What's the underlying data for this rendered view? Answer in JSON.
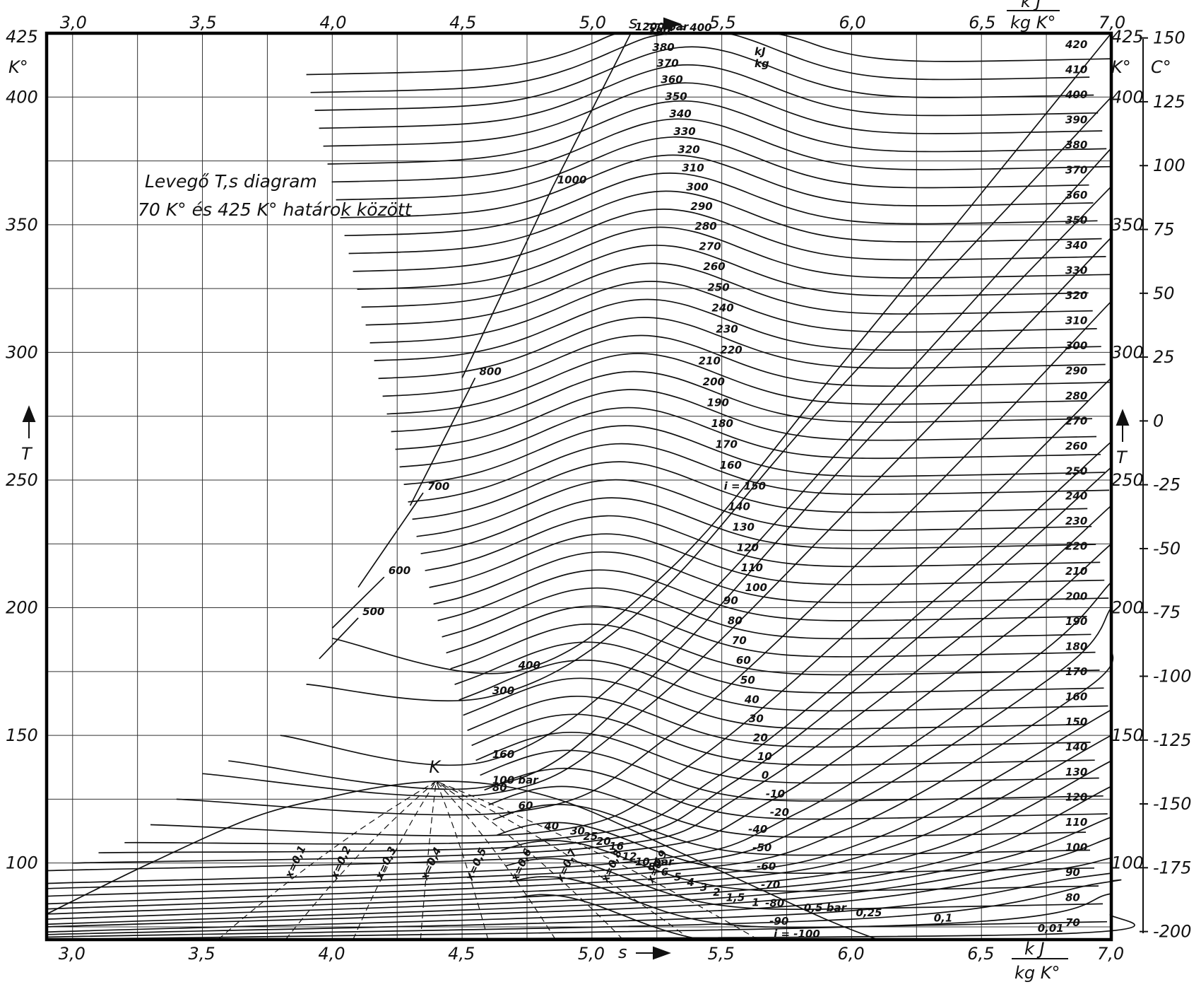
{
  "chart_data": {
    "type": "line",
    "title": "Levegő T,s diagram",
    "subtitle": "70 K° és 425 K° határok között",
    "xlabel": "s",
    "x_unit_num": "k J",
    "x_unit_den": "kg K°",
    "ylabel": "T",
    "y_unit": "K°",
    "y2_unit": "C°",
    "xlim": [
      2.9,
      7.0
    ],
    "ylim": [
      70,
      425
    ],
    "y2lim": [
      -200,
      150
    ],
    "grid": true,
    "x_ticks_bottom": [
      "3,0",
      "3,5",
      "4,0",
      "4,5",
      "5,0",
      "5,5",
      "6,0",
      "6,5",
      "7,0"
    ],
    "x_ticks_top": [
      "3,0",
      "3,5",
      "4,0",
      "4,5",
      "5,0",
      "5,5",
      "6,0",
      "6,5",
      "7,0"
    ],
    "y_ticks_left": [
      "425",
      "400",
      "350",
      "300",
      "250",
      "200",
      "150",
      "100"
    ],
    "y_ticks_right": [
      "425",
      "400",
      "350",
      "300",
      "250",
      "200",
      "150",
      "100"
    ],
    "y2_ticks": [
      "150",
      "125",
      "100",
      "75",
      "50",
      "25",
      "0",
      "-25",
      "-50",
      "-75",
      "-100",
      "-125",
      "-150",
      "-175",
      "-200"
    ],
    "critical_point": {
      "label": "K",
      "s": 4.4,
      "T": 132
    },
    "saturation_curve": {
      "s": [
        2.9,
        3.3,
        3.7,
        4.0,
        4.2,
        4.4,
        4.6,
        4.8,
        5.0,
        5.3,
        5.6,
        5.9,
        6.1
      ],
      "T": [
        80,
        100,
        118,
        126,
        130,
        132,
        131,
        127,
        120,
        106,
        92,
        78,
        70
      ]
    },
    "isobars": [
      {
        "label": "1200 bar",
        "s": [
          4.85,
          5.15
        ],
        "T": [
          365,
          425
        ]
      },
      {
        "label": "1000",
        "s": [
          4.5,
          4.85
        ],
        "T": [
          290,
          365
        ]
      },
      {
        "label": "800",
        "s": [
          4.3,
          4.55
        ],
        "T": [
          240,
          290
        ]
      },
      {
        "label": "700",
        "s": [
          4.1,
          4.35
        ],
        "T": [
          208,
          245
        ]
      },
      {
        "label": "600",
        "s": [
          4.0,
          4.2
        ],
        "T": [
          192,
          212
        ]
      },
      {
        "label": "500",
        "s": [
          3.95,
          4.1
        ],
        "T": [
          180,
          196
        ]
      },
      {
        "label": "400",
        "s": [
          4.0,
          4.7,
          5.3,
          6.0,
          7.0
        ],
        "T": [
          188,
          175,
          215,
          300,
          425
        ]
      },
      {
        "label": "300",
        "s": [
          3.9,
          4.6,
          5.2,
          5.9,
          7.0
        ],
        "T": [
          170,
          165,
          200,
          280,
          400
        ]
      },
      {
        "label": "160",
        "s": [
          3.8,
          4.6,
          5.3,
          6.2,
          7.0
        ],
        "T": [
          150,
          140,
          190,
          290,
          380
        ]
      },
      {
        "label": "100 bar",
        "s": [
          3.6,
          4.6,
          5.2,
          6.1,
          7.0
        ],
        "T": [
          140,
          130,
          170,
          270,
          365
        ]
      },
      {
        "label": "80",
        "s": [
          3.5,
          4.6,
          5.2,
          6.1,
          7.0
        ],
        "T": [
          135,
          127,
          160,
          250,
          345
        ]
      },
      {
        "label": "60",
        "s": [
          3.4,
          4.7,
          5.3,
          6.2,
          7.0
        ],
        "T": [
          125,
          120,
          150,
          235,
          320
        ]
      },
      {
        "label": "40",
        "s": [
          3.3,
          4.8,
          5.4,
          6.3,
          7.0
        ],
        "T": [
          115,
          112,
          140,
          220,
          290
        ]
      },
      {
        "label": "30",
        "s": [
          3.2,
          4.9,
          5.5,
          6.4,
          7.0
        ],
        "T": [
          108,
          110,
          135,
          210,
          265
        ]
      },
      {
        "label": "25",
        "s": [
          3.1,
          4.95,
          5.55,
          6.45,
          7.0
        ],
        "T": [
          104,
          108,
          132,
          205,
          255
        ]
      },
      {
        "label": "20",
        "s": [
          3.0,
          5.0,
          5.6,
          6.5,
          7.0
        ],
        "T": [
          100,
          106,
          128,
          195,
          240
        ]
      },
      {
        "label": "16",
        "s": [
          2.9,
          5.05,
          5.7,
          6.6,
          7.0
        ],
        "T": [
          97,
          104,
          125,
          190,
          225
        ]
      },
      {
        "label": "12",
        "s": [
          2.9,
          5.1,
          5.8,
          6.7,
          7.0
        ],
        "T": [
          92,
          100,
          120,
          180,
          210
        ]
      },
      {
        "label": "10 bar",
        "s": [
          2.9,
          5.15,
          5.9,
          6.8,
          7.0
        ],
        "T": [
          90,
          98,
          118,
          175,
          200
        ]
      },
      {
        "label": "8",
        "s": [
          2.9,
          5.2,
          6.0,
          6.9,
          7.0
        ],
        "T": [
          87,
          96,
          114,
          168,
          185
        ]
      },
      {
        "label": "6",
        "s": [
          2.9,
          5.25,
          6.1,
          7.0
        ],
        "T": [
          84,
          94,
          110,
          160
        ]
      },
      {
        "label": "5",
        "s": [
          2.9,
          5.3,
          6.2,
          7.0
        ],
        "T": [
          82,
          92,
          108,
          150
        ]
      },
      {
        "label": "4",
        "s": [
          2.9,
          5.35,
          6.3,
          7.0
        ],
        "T": [
          80,
          90,
          105,
          140
        ]
      },
      {
        "label": "3",
        "s": [
          2.9,
          5.4,
          6.4,
          7.0
        ],
        "T": [
          78,
          88,
          102,
          130
        ]
      },
      {
        "label": "2",
        "s": [
          2.9,
          5.45,
          6.5,
          7.0
        ],
        "T": [
          76,
          86,
          100,
          118
        ]
      },
      {
        "label": "1,5",
        "s": [
          2.9,
          5.5,
          6.6,
          7.0
        ],
        "T": [
          75,
          84,
          98,
          110
        ]
      },
      {
        "label": "1",
        "s": [
          2.9,
          5.6,
          6.7,
          7.0
        ],
        "T": [
          73,
          82,
          96,
          102
        ]
      },
      {
        "label": "0,5 bar",
        "s": [
          2.9,
          5.8,
          6.85,
          7.0
        ],
        "T": [
          72,
          80,
          94,
          96
        ]
      },
      {
        "label": "0,25",
        "s": [
          2.9,
          6.0,
          6.95,
          7.0
        ],
        "T": [
          71,
          78,
          92,
          93
        ]
      },
      {
        "label": "0,1",
        "s": [
          2.9,
          6.3,
          7.0
        ],
        "T": [
          70,
          76,
          88
        ]
      },
      {
        "label": "0,01",
        "s": [
          2.9,
          6.7,
          7.0
        ],
        "T": [
          70,
          72,
          80
        ]
      }
    ],
    "enthalpy_labels": [
      "i = 400",
      "390",
      "380",
      "370",
      "360",
      "350",
      "340",
      "330",
      "320",
      "310",
      "300",
      "290",
      "280",
      "270",
      "260",
      "250",
      "240",
      "230",
      "220",
      "210",
      "200",
      "190",
      "180",
      "170",
      "160",
      "i = 150",
      "140",
      "130",
      "120",
      "110",
      "100",
      "90",
      "80",
      "70",
      "60",
      "50",
      "40",
      "30",
      "20",
      "10",
      "0",
      "-10",
      "-20",
      "-40",
      "-50",
      "-60",
      "-70",
      "-80",
      "-90",
      "i = -100"
    ],
    "enthalpy_unit_num": "kJ",
    "enthalpy_unit_den": "kg",
    "right_enthalpy": [
      "420",
      "410",
      "400",
      "390",
      "380",
      "370",
      "360",
      "350",
      "340",
      "330",
      "320",
      "310",
      "300",
      "290",
      "280",
      "270",
      "260",
      "250",
      "240",
      "230",
      "220",
      "210",
      "200",
      "190",
      "180",
      "170",
      "160",
      "150",
      "140",
      "130",
      "120",
      "110",
      "100",
      "90",
      "80",
      "70"
    ],
    "quality_lines": [
      "x=0,1",
      "x=0,2",
      "x=0,3",
      "x=0,4",
      "x=0,5",
      "x=0,6",
      "x=0,7",
      "x=0,8",
      "x=0,9"
    ]
  }
}
